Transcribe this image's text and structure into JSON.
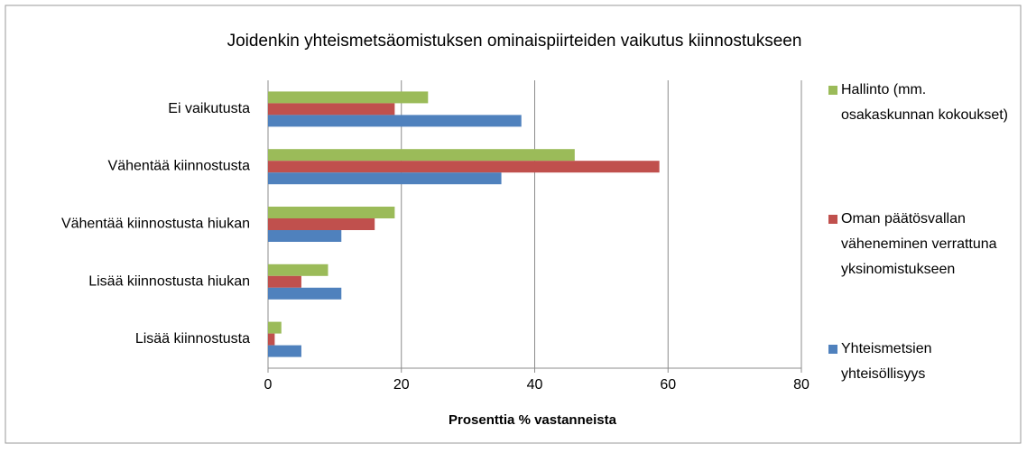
{
  "chart_data": {
    "type": "hbar",
    "title": "Joidenkin yhteismetsäomistuksen ominaispiirteiden vaikutus kiinnostukseen",
    "xlabel": "Prosenttia  % vastanneista",
    "categories": [
      "Ei vaikutusta",
      "Vähentää kiinnostusta",
      "Vähentää kiinnostusta hiukan",
      "Lisää kiinnostusta hiukan",
      "Lisää kiinnostusta"
    ],
    "series": [
      {
        "name": "Hallinto (mm. osakaskunnan kokoukset)",
        "color": "#9bbb59",
        "values": [
          24,
          46,
          19,
          9,
          2
        ]
      },
      {
        "name": "Oman päätösvallan väheneminen verrattuna yksinomistukseen",
        "color": "#c0504d",
        "values": [
          19,
          58.7,
          16,
          5,
          1
        ]
      },
      {
        "name": "Yhteismetsien yhteisöllisyys",
        "color": "#4f81bd",
        "values": [
          38,
          35,
          11,
          11,
          5
        ]
      }
    ],
    "xlim": [
      0,
      80
    ],
    "xticks": [
      0,
      20,
      40,
      60,
      80
    ],
    "grid": true,
    "legend": "right"
  }
}
